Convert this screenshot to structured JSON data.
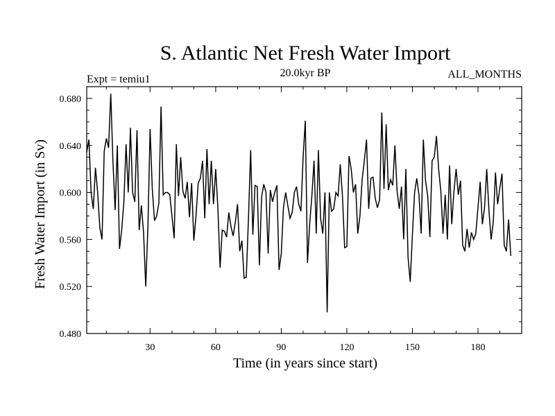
{
  "chart_data": {
    "type": "line",
    "title": "S. Atlantic Net Fresh Water Import",
    "subtitle": "20.0kyr BP",
    "left_label": "Expt = temiu1",
    "right_label": "ALL_MONTHS",
    "xlabel": "Time (in years since start)",
    "ylabel": "Fresh Water Import (in Sv)",
    "xlim": [
      1,
      200
    ],
    "ylim": [
      0.48,
      0.69
    ],
    "x_ticks": [
      30,
      60,
      90,
      120,
      150,
      180
    ],
    "y_ticks": [
      0.48,
      0.52,
      0.56,
      0.6,
      0.64,
      0.68
    ],
    "y_tick_labels": [
      "0.480",
      "0.520",
      "0.560",
      "0.600",
      "0.640",
      "0.680"
    ],
    "x_start": 1,
    "x_step": 1,
    "series": [
      {
        "name": "Net fresh water import",
        "color": "#000000",
        "values": [
          0.634,
          0.645,
          0.6,
          0.586,
          0.621,
          0.6,
          0.57,
          0.56,
          0.635,
          0.646,
          0.638,
          0.684,
          0.626,
          0.585,
          0.64,
          0.552,
          0.568,
          0.592,
          0.641,
          0.6,
          0.655,
          0.6,
          0.592,
          0.653,
          0.568,
          0.589,
          0.566,
          0.52,
          0.571,
          0.654,
          0.603,
          0.576,
          0.58,
          0.591,
          0.673,
          0.598,
          0.6,
          0.6,
          0.598,
          0.58,
          0.561,
          0.641,
          0.597,
          0.63,
          0.601,
          0.595,
          0.609,
          0.579,
          0.608,
          0.559,
          0.58,
          0.608,
          0.612,
          0.627,
          0.578,
          0.637,
          0.59,
          0.627,
          0.59,
          0.62,
          0.587,
          0.536,
          0.568,
          0.567,
          0.562,
          0.583,
          0.571,
          0.563,
          0.575,
          0.59,
          0.55,
          0.559,
          0.527,
          0.528,
          0.578,
          0.636,
          0.564,
          0.606,
          0.605,
          0.538,
          0.596,
          0.607,
          0.6,
          0.548,
          0.602,
          0.592,
          0.6,
          0.606,
          0.534,
          0.548,
          0.587,
          0.6,
          0.589,
          0.578,
          0.583,
          0.6,
          0.605,
          0.59,
          0.584,
          0.63,
          0.661,
          0.54,
          0.573,
          0.597,
          0.627,
          0.565,
          0.636,
          0.578,
          0.565,
          0.6,
          0.498,
          0.6,
          0.584,
          0.586,
          0.6,
          0.597,
          0.624,
          0.597,
          0.553,
          0.554,
          0.631,
          0.62,
          0.6,
          0.607,
          0.565,
          0.58,
          0.611,
          0.627,
          0.645,
          0.586,
          0.612,
          0.613,
          0.595,
          0.587,
          0.594,
          0.668,
          0.603,
          0.658,
          0.602,
          0.611,
          0.606,
          0.64,
          0.601,
          0.586,
          0.605,
          0.56,
          0.62,
          0.545,
          0.524,
          0.564,
          0.6,
          0.612,
          0.598,
          0.565,
          0.645,
          0.61,
          0.597,
          0.562,
          0.627,
          0.63,
          0.648,
          0.62,
          0.601,
          0.565,
          0.598,
          0.56,
          0.623,
          0.573,
          0.601,
          0.62,
          0.598,
          0.61,
          0.555,
          0.55,
          0.569,
          0.553,
          0.566,
          0.56,
          0.565,
          0.587,
          0.609,
          0.573,
          0.587,
          0.62,
          0.585,
          0.56,
          0.575,
          0.617,
          0.59,
          0.604,
          0.616,
          0.555,
          0.55,
          0.577,
          0.546
        ]
      }
    ]
  }
}
